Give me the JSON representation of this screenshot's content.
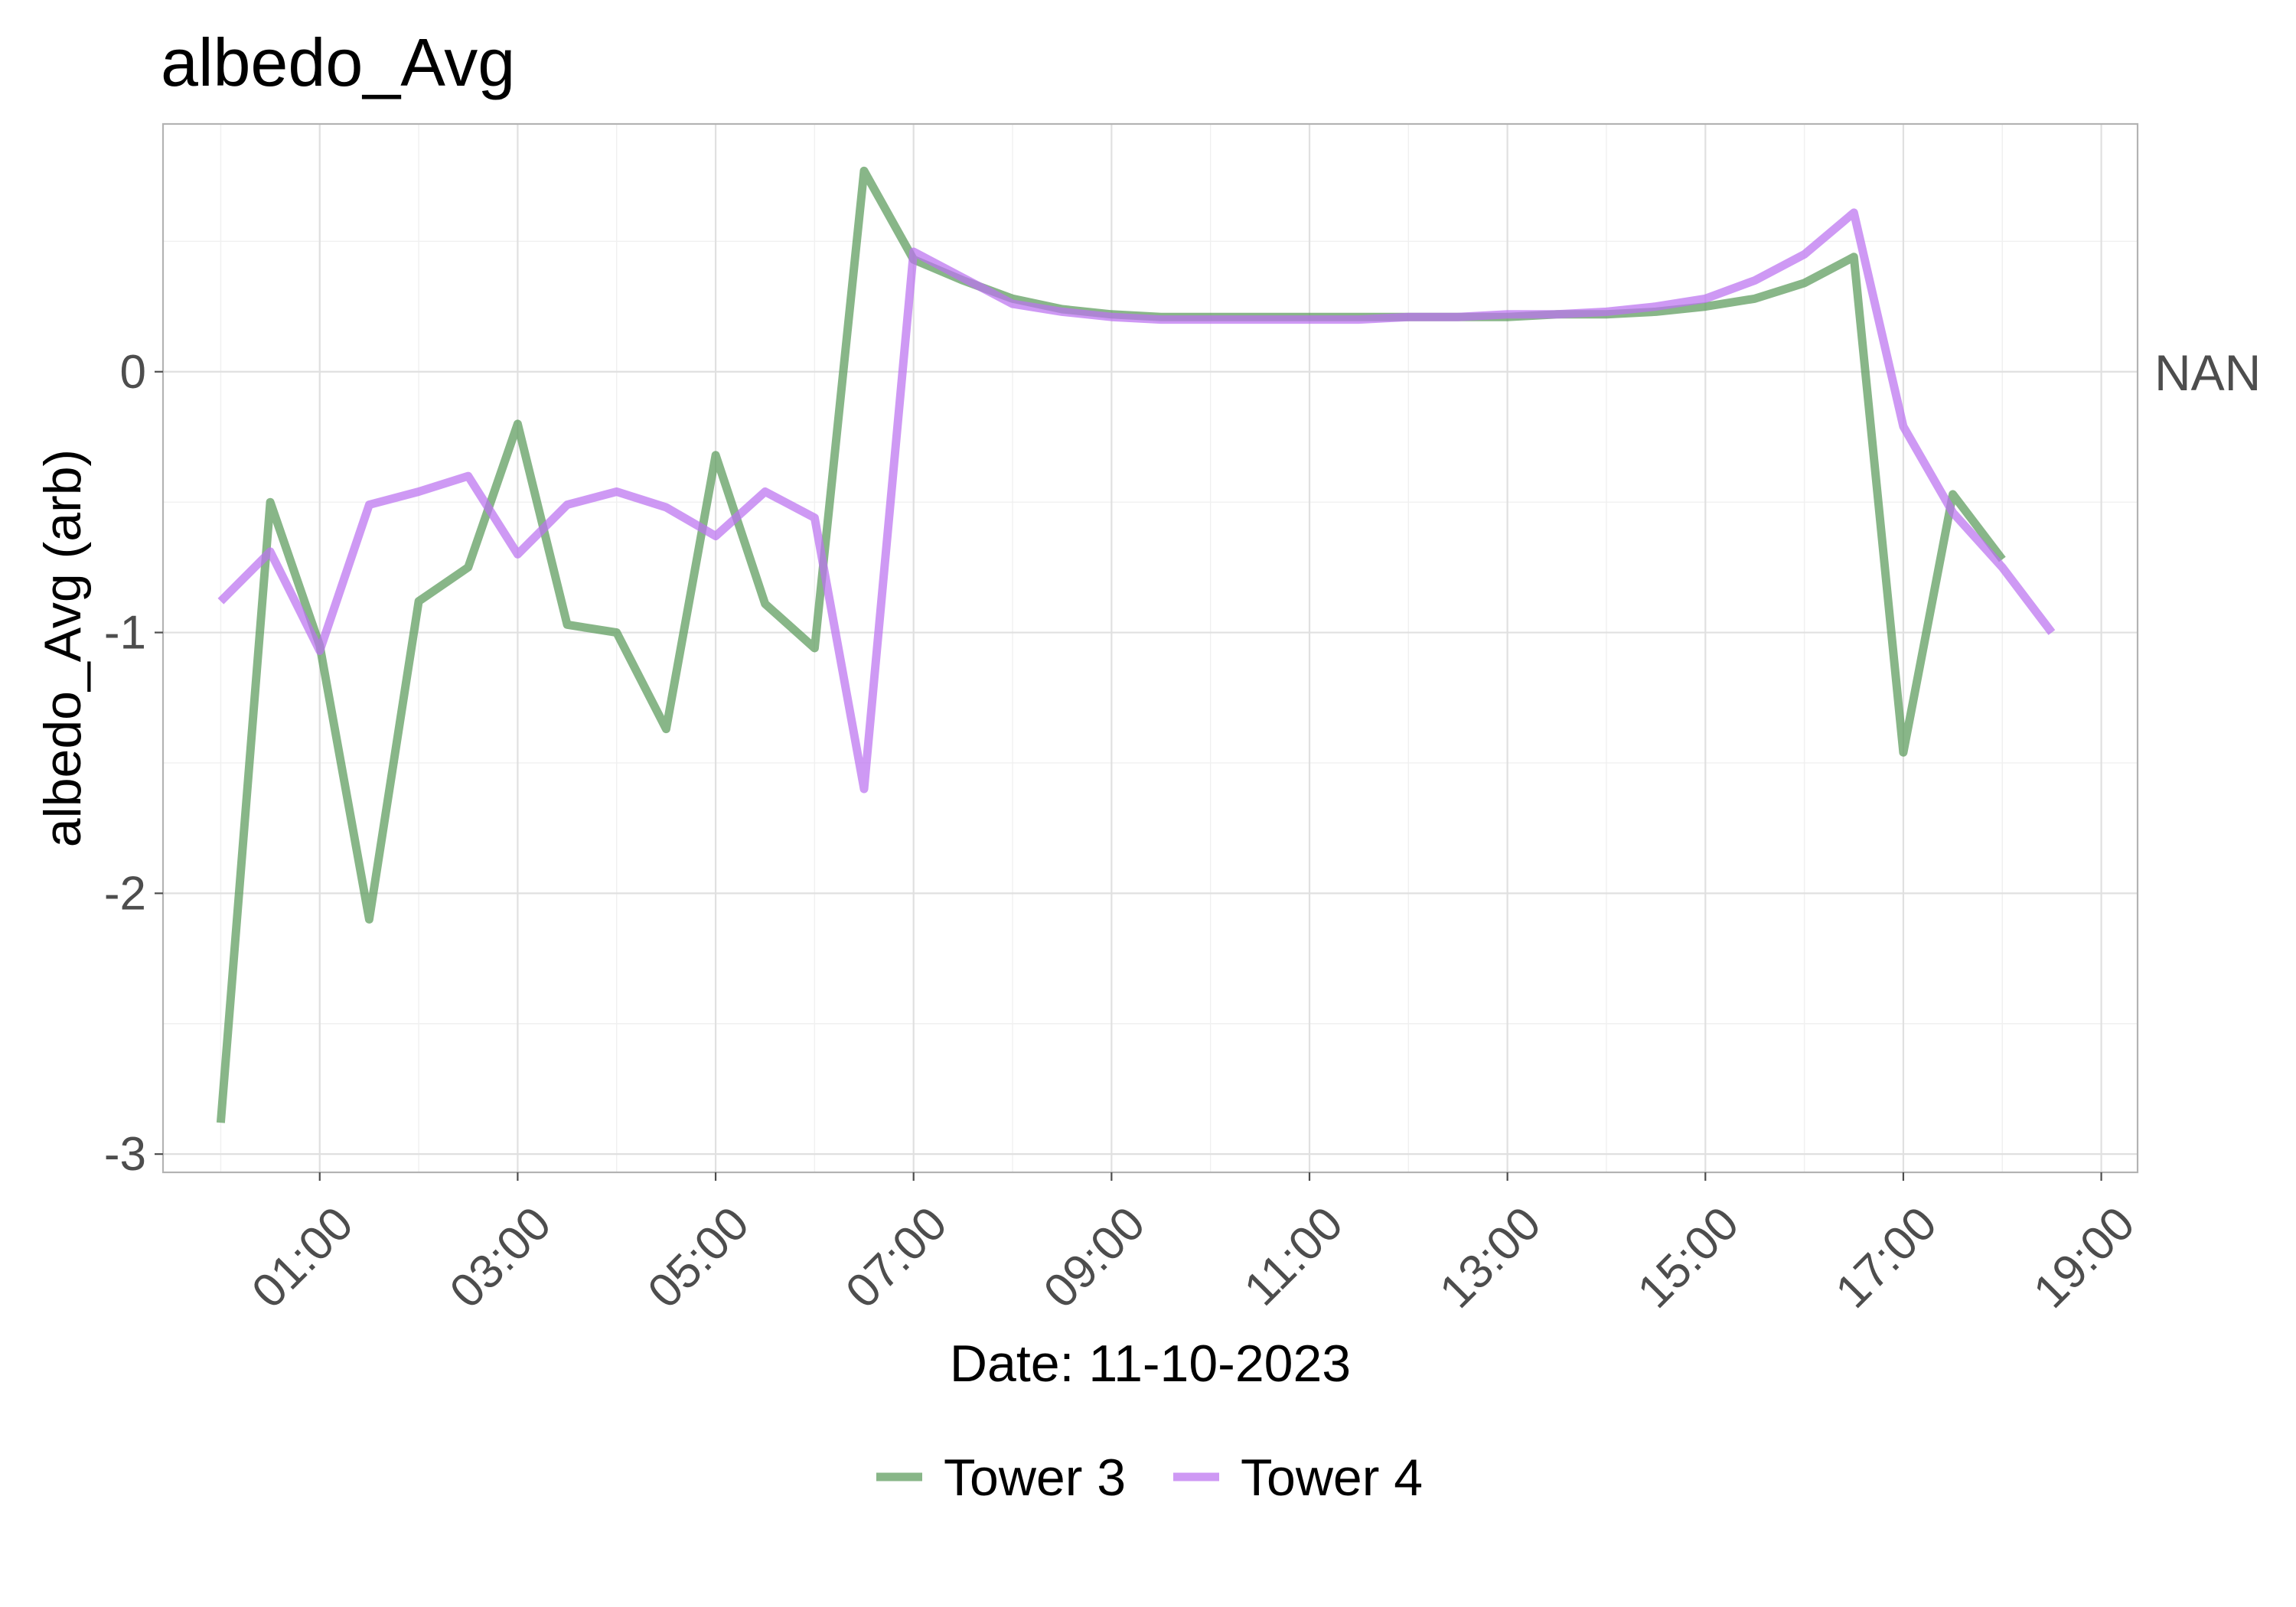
{
  "chart_data": {
    "type": "line",
    "title": "albedo_Avg",
    "xlabel": "Date: 11-10-2023",
    "ylabel": "albedo_Avg (arb)",
    "facet_label": "NAN",
    "x_unit": "time of day (HH:MM)",
    "xlim": [
      "23:25",
      "19:22"
    ],
    "ylim": [
      -3.07,
      0.95
    ],
    "x_ticks": [
      "01:00",
      "03:00",
      "05:00",
      "07:00",
      "09:00",
      "11:00",
      "13:00",
      "15:00",
      "17:00",
      "19:00"
    ],
    "y_ticks": [
      -3,
      -2,
      -1,
      0
    ],
    "y_tick_labels": [
      "-3",
      "-2",
      "-1",
      "0"
    ],
    "grid": true,
    "legend_position": "bottom",
    "series": [
      {
        "name": "Tower 3",
        "color": "#5a9a5a",
        "x": [
          "00:00",
          "00:30",
          "01:00",
          "01:30",
          "02:00",
          "02:30",
          "03:00",
          "03:30",
          "04:00",
          "04:30",
          "05:00",
          "05:30",
          "06:00",
          "06:30",
          "07:00",
          "07:30",
          "08:00",
          "08:30",
          "09:00",
          "09:30",
          "10:00",
          "10:30",
          "11:00",
          "11:30",
          "12:00",
          "12:30",
          "13:00",
          "13:30",
          "14:00",
          "14:30",
          "15:00",
          "15:30",
          "16:00",
          "16:30",
          "17:00",
          "17:30",
          "18:00"
        ],
        "values": [
          -2.88,
          -0.5,
          -1.05,
          -2.1,
          -0.88,
          -0.75,
          -0.2,
          -0.97,
          -1.0,
          -1.37,
          -0.32,
          -0.89,
          -1.06,
          0.77,
          0.43,
          0.35,
          0.28,
          0.24,
          0.22,
          0.21,
          0.21,
          0.21,
          0.21,
          0.21,
          0.21,
          0.21,
          0.21,
          0.22,
          0.22,
          0.23,
          0.25,
          0.28,
          0.34,
          0.44,
          -1.46,
          -0.47,
          -0.72
        ]
      },
      {
        "name": "Tower 4",
        "color": "#bb71f0",
        "x": [
          "00:00",
          "00:30",
          "01:00",
          "01:30",
          "02:00",
          "02:30",
          "03:00",
          "03:30",
          "04:00",
          "04:30",
          "05:00",
          "05:30",
          "06:00",
          "06:30",
          "07:00",
          "07:30",
          "08:00",
          "08:30",
          "09:00",
          "09:30",
          "10:00",
          "10:30",
          "11:00",
          "11:30",
          "12:00",
          "12:30",
          "13:00",
          "13:30",
          "14:00",
          "14:30",
          "15:00",
          "15:30",
          "16:00",
          "16:30",
          "17:00",
          "17:30",
          "18:00",
          "18:30"
        ],
        "values": [
          -0.88,
          -0.69,
          -1.07,
          -0.51,
          -0.46,
          -0.4,
          -0.7,
          -0.51,
          -0.46,
          -0.52,
          -0.63,
          -0.46,
          -0.56,
          -1.6,
          0.46,
          0.36,
          0.26,
          0.23,
          0.21,
          0.2,
          0.2,
          0.2,
          0.2,
          0.2,
          0.21,
          0.21,
          0.22,
          0.22,
          0.23,
          0.25,
          0.28,
          0.35,
          0.45,
          0.61,
          -0.21,
          -0.54,
          -0.75,
          -1.0
        ]
      }
    ]
  }
}
